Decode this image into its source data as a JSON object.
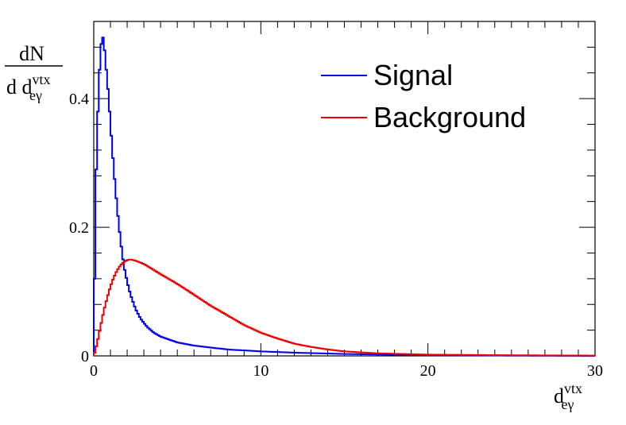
{
  "chart_data": {
    "type": "line",
    "style": "step-histogram",
    "xlim": [
      0,
      30
    ],
    "ylim": [
      0,
      0.52
    ],
    "x_ticks": [
      0,
      10,
      20,
      30
    ],
    "x_tick_labels": [
      "0",
      "10",
      "20",
      "30"
    ],
    "y_ticks": [
      0,
      0.2,
      0.4
    ],
    "y_tick_labels": [
      "0",
      "0.2",
      "0.4"
    ],
    "xlabel": {
      "main": "d",
      "sub": "eγ",
      "sup": "vtx"
    },
    "ylabel": {
      "numerator": "dN",
      "denominator": {
        "main": "d d",
        "sub": "eγ",
        "sup": "vtx"
      }
    },
    "grid": false,
    "legend_position": "top-right",
    "series": [
      {
        "name": "Signal",
        "color": "#0000ee",
        "x": [
          0.0,
          0.1,
          0.2,
          0.3,
          0.4,
          0.5,
          0.6,
          0.7,
          0.8,
          0.9,
          1.0,
          1.2,
          1.4,
          1.6,
          1.8,
          2.0,
          2.2,
          2.5,
          2.8,
          3.2,
          3.6,
          4.0,
          5.0,
          6.0,
          8.0,
          10.0,
          12.0,
          15.0,
          20.0,
          25.0,
          30.0
        ],
        "values": [
          0.0,
          0.24,
          0.34,
          0.42,
          0.47,
          0.5,
          0.49,
          0.46,
          0.43,
          0.4,
          0.36,
          0.29,
          0.23,
          0.18,
          0.14,
          0.115,
          0.095,
          0.073,
          0.058,
          0.045,
          0.036,
          0.03,
          0.021,
          0.016,
          0.01,
          0.007,
          0.005,
          0.003,
          0.001,
          0.0005,
          0.0
        ]
      },
      {
        "name": "Background",
        "color": "#ee0000",
        "x": [
          0.0,
          0.2,
          0.4,
          0.6,
          0.8,
          1.0,
          1.2,
          1.4,
          1.6,
          1.8,
          2.0,
          2.2,
          2.5,
          3.0,
          3.5,
          4.0,
          5.0,
          6.0,
          7.0,
          8.0,
          9.0,
          10.0,
          11.0,
          12.0,
          13.0,
          14.0,
          15.0,
          17.0,
          20.0,
          25.0,
          30.0
        ],
        "values": [
          0.0,
          0.02,
          0.045,
          0.07,
          0.09,
          0.108,
          0.122,
          0.133,
          0.141,
          0.146,
          0.149,
          0.15,
          0.148,
          0.143,
          0.135,
          0.127,
          0.112,
          0.095,
          0.078,
          0.063,
          0.048,
          0.036,
          0.027,
          0.019,
          0.014,
          0.01,
          0.007,
          0.004,
          0.002,
          0.001,
          0.0005
        ]
      }
    ]
  }
}
